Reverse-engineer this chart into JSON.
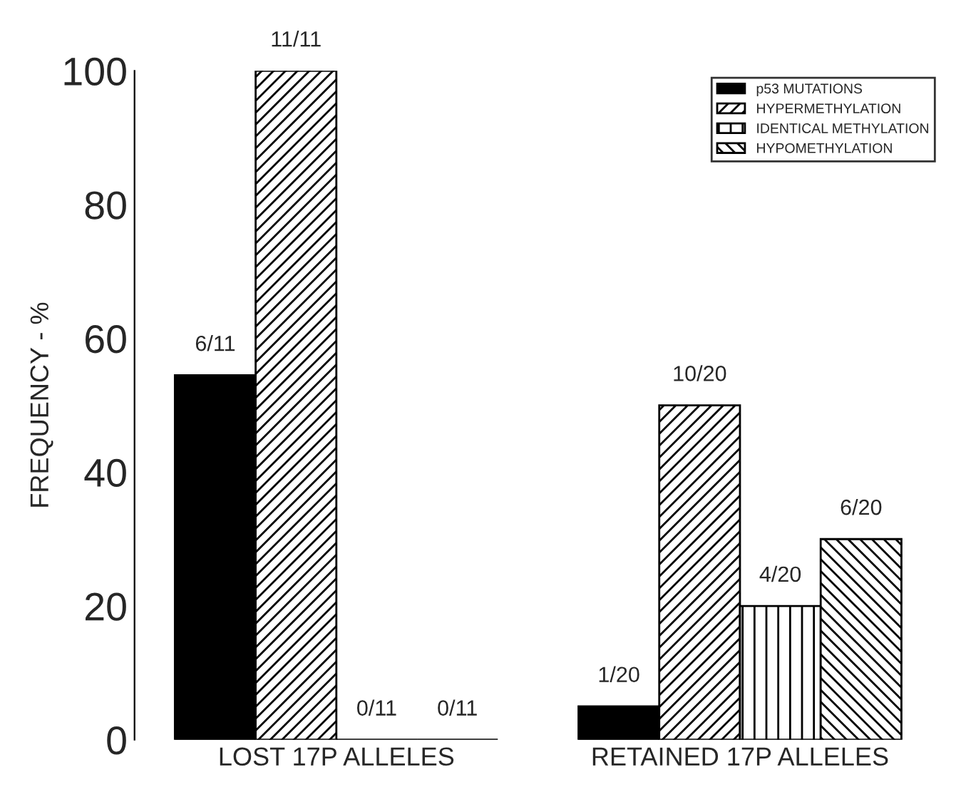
{
  "chart_data": {
    "type": "bar",
    "ylabel": "FREQUENCY - %",
    "categories": [
      "LOST 17P ALLELES",
      "RETAINED 17P ALLELES"
    ],
    "series": [
      {
        "name": "p53 MUTATIONS",
        "color": "#000000",
        "values": [
          54.5,
          5
        ],
        "value_labels": [
          "6/11",
          "1/20"
        ]
      },
      {
        "name": "HYPERMETHYLATION",
        "color": "#000000",
        "values": [
          100,
          50
        ],
        "value_labels": [
          "11/11",
          "10/20"
        ]
      },
      {
        "name": "IDENTICAL METHYLATION",
        "color": "#000000",
        "values": [
          0,
          20
        ],
        "value_labels": [
          "0/11",
          "4/20"
        ]
      },
      {
        "name": "HYPOMETHYLATION",
        "color": "#000000",
        "values": [
          0,
          30
        ],
        "value_labels": [
          "0/11",
          "6/20"
        ]
      }
    ],
    "ylim": [
      0,
      100
    ],
    "yticks": [
      0,
      20,
      40,
      60,
      80,
      100
    ],
    "grid": false,
    "legend": "top right"
  }
}
